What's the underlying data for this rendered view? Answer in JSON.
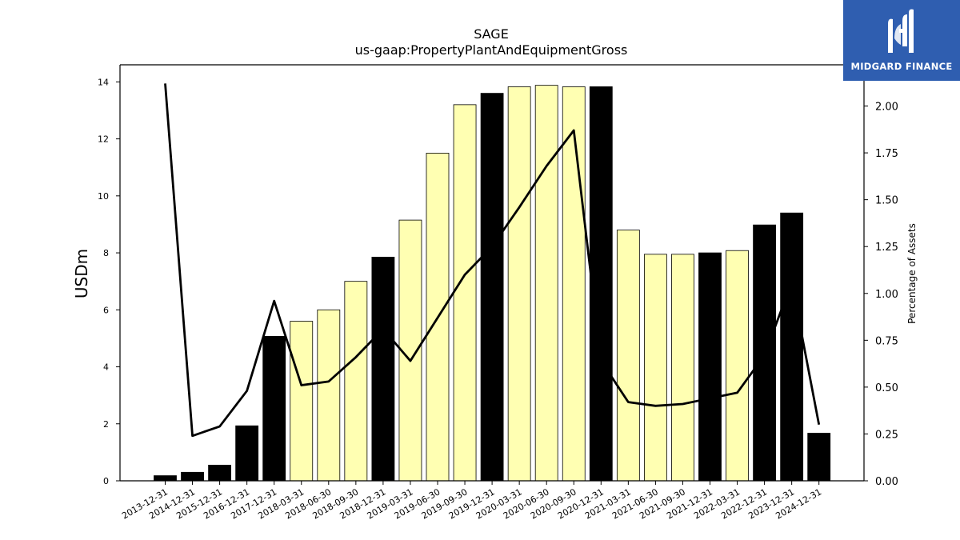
{
  "chart_data": {
    "type": "bar",
    "title": "SAGE",
    "subtitle": "us-gaap:PropertyPlantAndEquipmentGross",
    "ylabel": "USDm",
    "y2label": "Percentage of Assets",
    "ylim": [
      0,
      14.6
    ],
    "y2lim": [
      0,
      2.22
    ],
    "yticks": [
      "0",
      "2",
      "4",
      "6",
      "8",
      "10",
      "12",
      "14"
    ],
    "y2ticks": [
      "0.00",
      "0.25",
      "0.50",
      "0.75",
      "1.00",
      "1.25",
      "1.50",
      "1.75",
      "2.00"
    ],
    "categories": [
      "2013-12-31",
      "2014-12-31",
      "2015-12-31",
      "2016-12-31",
      "2017-12-31",
      "2018-03-31",
      "2018-06-30",
      "2018-09-30",
      "2018-12-31",
      "2019-03-31",
      "2019-06-30",
      "2019-09-30",
      "2019-12-31",
      "2020-03-31",
      "2020-06-30",
      "2020-09-30",
      "2020-12-31",
      "2021-03-31",
      "2021-06-30",
      "2021-09-30",
      "2021-12-31",
      "2022-03-31",
      "2022-12-31",
      "2023-12-31",
      "2024-12-31"
    ],
    "bar_kind": [
      "annual",
      "annual",
      "annual",
      "annual",
      "annual",
      "quarterly",
      "quarterly",
      "quarterly",
      "annual",
      "quarterly",
      "quarterly",
      "quarterly",
      "annual",
      "quarterly",
      "quarterly",
      "quarterly",
      "annual",
      "quarterly",
      "quarterly",
      "quarterly",
      "annual",
      "quarterly",
      "annual",
      "annual",
      "annual"
    ],
    "series": [
      {
        "name": "",
        "axis": "left",
        "values": [
          0.18,
          0.3,
          0.55,
          1.93,
          5.07,
          5.6,
          6.0,
          7.0,
          7.85,
          9.15,
          11.5,
          13.2,
          13.6,
          13.83,
          13.88,
          13.83,
          13.83,
          8.8,
          7.95,
          7.95,
          8.0,
          8.08,
          8.98,
          9.4,
          1.67
        ]
      },
      {
        "name": "",
        "axis": "right",
        "values": [
          2.12,
          0.24,
          0.29,
          0.48,
          0.96,
          0.51,
          0.53,
          0.66,
          0.81,
          0.64,
          0.87,
          1.1,
          1.25,
          1.46,
          1.68,
          1.87,
          0.64,
          0.42,
          0.4,
          0.41,
          0.44,
          0.47,
          0.67,
          1.06,
          0.3
        ]
      }
    ],
    "colors": {
      "annual_bar": "#000000",
      "quarterly_bar": "#ffffb2",
      "bar_edge": "#000000",
      "line": "#000000"
    },
    "grid": false
  },
  "logo": {
    "text": "MIDGARD FINANCE",
    "background": "#2f5eb0",
    "icon": "midgard-m-logo-icon"
  }
}
